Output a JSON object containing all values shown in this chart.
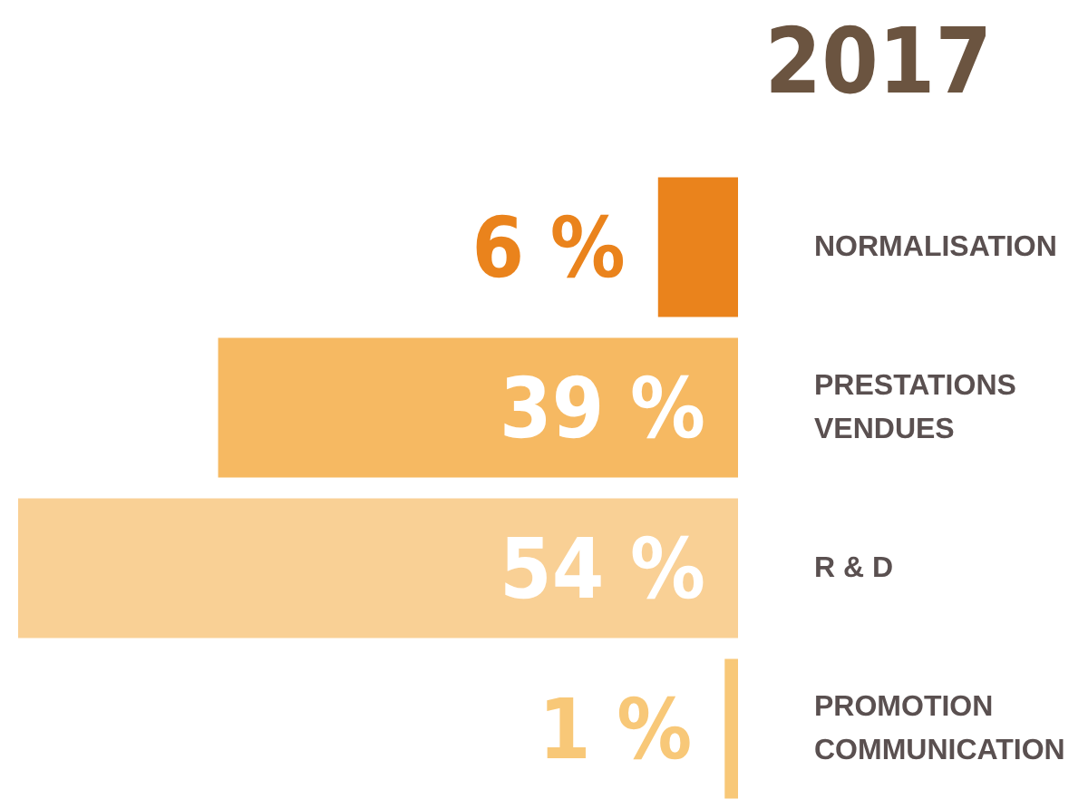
{
  "chart_data": {
    "type": "bar",
    "orientation": "horizontal",
    "title": "2017",
    "categories": [
      "NORMALISATION",
      "PRESTATIONS VENDUES",
      "R & D",
      "PROMOTION COMMUNICATION"
    ],
    "values": [
      6,
      39,
      54,
      1
    ],
    "colors": [
      "#ea831c",
      "#f6b962",
      "#f9d095",
      "#f8c878"
    ],
    "value_labels": [
      "6 %",
      "39 %",
      "54 %",
      "1 %"
    ]
  }
}
